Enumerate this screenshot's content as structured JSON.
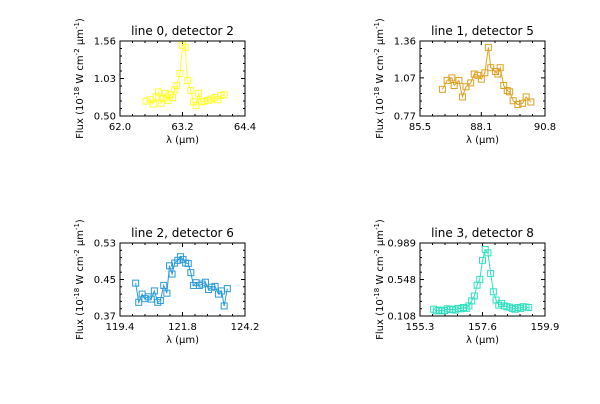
{
  "chart_data": [
    {
      "type": "scatter",
      "title": "line 0, detector 2",
      "xlabel": "λ (μm)",
      "ylabel": "Flux (10^-18 W cm^-2 μm^-1)",
      "xlim": [
        62.0,
        64.4
      ],
      "ylim": [
        0.5,
        1.56
      ],
      "xticks": [
        "62.0",
        "63.2",
        "64.4"
      ],
      "yticks": [
        "0.50",
        "1.03",
        "1.56"
      ],
      "color": "#ffff33",
      "series": [
        {
          "x": [
            62.5,
            62.58,
            62.64,
            62.69,
            62.74,
            62.79,
            62.83,
            62.87,
            62.92,
            62.96,
            63.01,
            63.05,
            63.09,
            63.15,
            63.2,
            63.25,
            63.3,
            63.36,
            63.41,
            63.46,
            63.51,
            63.56,
            63.62,
            63.69,
            63.75,
            63.82,
            63.88,
            63.94,
            64.0
          ],
          "y": [
            0.71,
            0.73,
            0.67,
            0.77,
            0.84,
            0.68,
            0.75,
            0.82,
            0.72,
            0.8,
            0.76,
            0.87,
            0.93,
            1.1,
            1.5,
            1.47,
            1.0,
            0.86,
            0.7,
            0.65,
            0.82,
            0.7,
            0.71,
            0.72,
            0.74,
            0.76,
            0.73,
            0.79,
            0.8
          ]
        }
      ]
    },
    {
      "type": "scatter",
      "title": "line 1, detector 5",
      "xlabel": "λ (μm)",
      "ylabel": "Flux (10^-18 W cm^-2 μm^-1)",
      "xlim": [
        85.5,
        90.8
      ],
      "ylim": [
        0.77,
        1.36
      ],
      "xticks": [
        "85.5",
        "88.1",
        "90.8"
      ],
      "yticks": [
        "0.77",
        "1.07",
        "1.36"
      ],
      "color": "#e0a020",
      "series": [
        {
          "x": [
            86.45,
            86.65,
            86.85,
            86.95,
            87.15,
            87.3,
            87.45,
            87.65,
            87.8,
            87.95,
            88.1,
            88.25,
            88.4,
            88.5,
            88.7,
            88.8,
            88.9,
            89.05,
            89.2,
            89.3,
            89.45,
            89.65,
            89.85,
            90.0,
            90.2
          ],
          "y": [
            0.98,
            1.05,
            1.07,
            1.01,
            1.05,
            0.92,
            1.0,
            1.03,
            1.1,
            1.09,
            1.06,
            1.11,
            1.31,
            1.15,
            1.12,
            1.1,
            1.15,
            1.01,
            0.97,
            0.96,
            0.89,
            0.86,
            0.87,
            0.92,
            0.88
          ]
        }
      ]
    },
    {
      "type": "scatter",
      "title": "line 2, detector 6",
      "xlabel": "λ (μm)",
      "ylabel": "Flux (10^-18 W cm^-2 μm^-1)",
      "xlim": [
        119.4,
        124.2
      ],
      "ylim": [
        0.37,
        0.53
      ],
      "xticks": [
        "119.4",
        "121.8",
        "124.2"
      ],
      "yticks": [
        "0.37",
        "0.45",
        "0.53"
      ],
      "color": "#2b9bd8",
      "series": [
        {
          "x": [
            120.0,
            120.12,
            120.25,
            120.35,
            120.48,
            120.6,
            120.72,
            120.85,
            120.95,
            121.08,
            121.2,
            121.3,
            121.4,
            121.5,
            121.62,
            121.72,
            121.82,
            121.92,
            122.02,
            122.12,
            122.22,
            122.32,
            122.45,
            122.55,
            122.68,
            122.8,
            122.92,
            123.05,
            123.18,
            123.3,
            123.4,
            123.52
          ],
          "y": [
            0.442,
            0.4,
            0.418,
            0.408,
            0.412,
            0.407,
            0.425,
            0.4,
            0.404,
            0.437,
            0.42,
            0.48,
            0.462,
            0.486,
            0.492,
            0.5,
            0.494,
            0.486,
            0.485,
            0.465,
            0.437,
            0.443,
            0.437,
            0.44,
            0.444,
            0.428,
            0.433,
            0.435,
            0.418,
            0.425,
            0.392,
            0.43
          ]
        }
      ]
    },
    {
      "type": "scatter",
      "title": "line 3, detector 8",
      "xlabel": "λ (μm)",
      "ylabel": "Flux (10^-18 W cm^-2 μm^-1)",
      "xlim": [
        155.3,
        159.9
      ],
      "ylim": [
        0.108,
        0.989
      ],
      "xticks": [
        "155.3",
        "157.6",
        "159.9"
      ],
      "yticks": [
        "0.108",
        "0.548",
        "0.989"
      ],
      "color": "#30e0c0",
      "series": [
        {
          "x": [
            155.8,
            155.9,
            156.0,
            156.1,
            156.2,
            156.3,
            156.4,
            156.5,
            156.6,
            156.7,
            156.8,
            156.9,
            157.0,
            157.1,
            157.2,
            157.3,
            157.4,
            157.5,
            157.6,
            157.7,
            157.8,
            157.9,
            158.0,
            158.1,
            158.2,
            158.3,
            158.4,
            158.5,
            158.6,
            158.7,
            158.8,
            158.9,
            159.0,
            159.1,
            159.2,
            159.3
          ],
          "y": [
            0.19,
            0.17,
            0.18,
            0.17,
            0.175,
            0.195,
            0.185,
            0.19,
            0.18,
            0.2,
            0.195,
            0.21,
            0.2,
            0.23,
            0.29,
            0.35,
            0.48,
            0.55,
            0.78,
            0.91,
            0.87,
            0.62,
            0.4,
            0.3,
            0.24,
            0.26,
            0.23,
            0.22,
            0.215,
            0.2,
            0.19,
            0.21,
            0.2,
            0.22,
            0.215,
            0.21
          ]
        }
      ]
    }
  ]
}
